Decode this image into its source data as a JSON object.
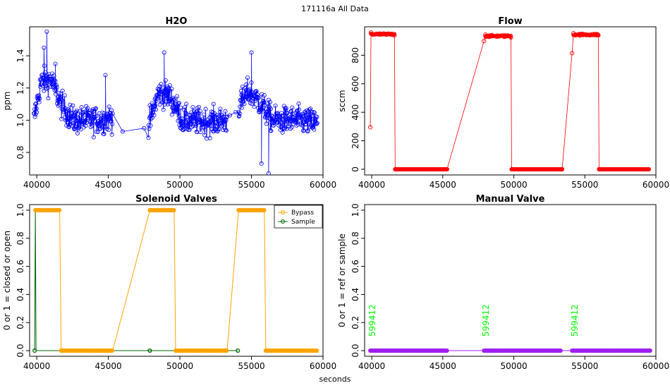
{
  "figure": {
    "title": "171116a   All Data",
    "xlabel": "seconds"
  },
  "chart_data": [
    {
      "id": "h2o",
      "type": "line",
      "title": "H2O",
      "ylabel": "ppm",
      "xlim": [
        39500,
        60000
      ],
      "ylim": [
        0.66,
        1.58
      ],
      "xticks": [
        40000,
        45000,
        50000,
        55000,
        60000
      ],
      "xtick_labels": [
        "40000",
        "45000",
        "50000",
        "55000",
        "60000"
      ],
      "yticks": [
        0.8,
        1.0,
        1.2,
        1.4
      ],
      "ytick_labels": [
        "0.8",
        "1.0",
        "1.2",
        "1.4"
      ],
      "series": [
        {
          "name": "H2O",
          "color": "#0000ff",
          "segments": [
            {
              "x_start": 39800,
              "x_end": 45300,
              "step": 25,
              "profile": [
                [
                  39800,
                  1.0
                ],
                [
                  40300,
                  1.24
                ],
                [
                  41000,
                  1.25
                ],
                [
                  41700,
                  1.1
                ],
                [
                  42500,
                  1.0
                ],
                [
                  44500,
                  1.0
                ],
                [
                  45300,
                  1.02
                ]
              ],
              "noise": 0.08
            },
            {
              "x_start": 47800,
              "x_end": 53300,
              "step": 25,
              "profile": [
                [
                  47800,
                  0.96
                ],
                [
                  48500,
                  1.17
                ],
                [
                  49300,
                  1.15
                ],
                [
                  50200,
                  1.0
                ],
                [
                  52000,
                  0.99
                ],
                [
                  53300,
                  1.0
                ]
              ],
              "noise": 0.08
            },
            {
              "x_start": 54100,
              "x_end": 59600,
              "step": 25,
              "profile": [
                [
                  54100,
                  1.08
                ],
                [
                  54800,
                  1.18
                ],
                [
                  55500,
                  1.12
                ],
                [
                  56500,
                  1.0
                ],
                [
                  58500,
                  1.0
                ],
                [
                  59600,
                  0.98
                ]
              ],
              "noise": 0.08
            }
          ],
          "outliers": [
            [
              40700,
              1.55
            ],
            [
              40500,
              1.45
            ],
            [
              48900,
              1.42
            ],
            [
              41300,
              1.35
            ],
            [
              55000,
              1.42
            ],
            [
              56200,
              0.67
            ],
            [
              55700,
              0.73
            ],
            [
              44800,
              1.28
            ],
            [
              46000,
              0.93
            ],
            [
              47500,
              0.95
            ],
            [
              53500,
              1.03
            ],
            [
              53900,
              1.05
            ]
          ]
        }
      ]
    },
    {
      "id": "flow",
      "type": "line",
      "title": "Flow",
      "ylabel": "sccm",
      "xlim": [
        39500,
        60000
      ],
      "ylim": [
        -40,
        1000
      ],
      "xticks": [
        40000,
        45000,
        50000,
        55000,
        60000
      ],
      "xtick_labels": [
        "40000",
        "45000",
        "50000",
        "55000",
        "60000"
      ],
      "yticks": [
        0,
        200,
        400,
        600,
        800
      ],
      "ytick_labels": [
        "0",
        "200",
        "400",
        "600",
        "800"
      ],
      "series": [
        {
          "name": "Flow",
          "color": "#ff0000",
          "points": [
            [
              39900,
              295
            ],
            [
              39950,
              960
            ],
            [
              40300,
              950
            ],
            [
              41000,
              945
            ],
            [
              41600,
              940
            ],
            [
              41650,
              0
            ],
            [
              45300,
              0
            ],
            [
              47900,
              900
            ],
            [
              48000,
              945
            ],
            [
              49000,
              935
            ],
            [
              49800,
              925
            ],
            [
              49850,
              0
            ],
            [
              53400,
              0
            ],
            [
              54100,
              815
            ],
            [
              54200,
              955
            ],
            [
              55000,
              945
            ],
            [
              55950,
              940
            ],
            [
              56000,
              0
            ],
            [
              59500,
              0
            ]
          ],
          "dense_runs": [
            {
              "x_start": 39950,
              "x_end": 41600,
              "y": 948,
              "jitter": 12
            },
            {
              "x_start": 41650,
              "x_end": 45300,
              "y": 0,
              "jitter": 0
            },
            {
              "x_start": 48000,
              "x_end": 49800,
              "y": 935,
              "jitter": 12
            },
            {
              "x_start": 49850,
              "x_end": 53400,
              "y": 0,
              "jitter": 0
            },
            {
              "x_start": 54200,
              "x_end": 55950,
              "y": 945,
              "jitter": 12
            },
            {
              "x_start": 56000,
              "x_end": 59500,
              "y": 0,
              "jitter": 0
            }
          ]
        }
      ]
    },
    {
      "id": "valves",
      "type": "line",
      "title": "Solenoid Valves",
      "ylabel": "0 or 1 = closed or open",
      "xlim": [
        39500,
        60000
      ],
      "ylim": [
        -0.04,
        1.04
      ],
      "xticks": [
        40000,
        45000,
        50000,
        55000,
        60000
      ],
      "xtick_labels": [
        "40000",
        "45000",
        "50000",
        "55000",
        "60000"
      ],
      "yticks": [
        0.0,
        0.2,
        0.4,
        0.6,
        0.8,
        1.0
      ],
      "ytick_labels": [
        "0.0",
        "0.2",
        "0.4",
        "0.6",
        "0.8",
        "1.0"
      ],
      "legend": {
        "position": "top-right",
        "entries": [
          "Bypass",
          "Sample"
        ]
      },
      "series": [
        {
          "name": "Bypass",
          "color": "#ffa500",
          "points": [
            [
              39900,
              1
            ],
            [
              41600,
              1
            ],
            [
              41700,
              0
            ],
            [
              45300,
              0
            ],
            [
              47900,
              1
            ],
            [
              49600,
              1
            ],
            [
              49700,
              0
            ],
            [
              53300,
              0
            ],
            [
              54100,
              1
            ],
            [
              55900,
              1
            ],
            [
              56000,
              0
            ],
            [
              59600,
              0
            ]
          ],
          "dense_runs": [
            [
              39900,
              41600,
              1
            ],
            [
              41700,
              45300,
              0
            ],
            [
              47900,
              49600,
              1
            ],
            [
              49700,
              53300,
              0
            ],
            [
              54100,
              55900,
              1
            ],
            [
              56000,
              59600,
              0
            ]
          ]
        },
        {
          "name": "Sample",
          "color": "#006400",
          "points": [
            [
              39850,
              0
            ],
            [
              39900,
              1
            ],
            [
              39950,
              0
            ],
            [
              45300,
              0
            ],
            [
              47900,
              0
            ],
            [
              54050,
              0
            ]
          ],
          "markers": [
            [
              39850,
              0
            ],
            [
              47900,
              0
            ],
            [
              54050,
              0
            ]
          ]
        }
      ]
    },
    {
      "id": "manual",
      "type": "line",
      "title": "Manual Valve",
      "ylabel": "0 or 1 = ref or sample",
      "xlim": [
        39500,
        60000
      ],
      "ylim": [
        -0.04,
        1.04
      ],
      "xticks": [
        40000,
        45000,
        50000,
        55000,
        60000
      ],
      "xtick_labels": [
        "40000",
        "45000",
        "50000",
        "55000",
        "60000"
      ],
      "yticks": [
        0.0,
        0.2,
        0.4,
        0.6,
        0.8,
        1.0
      ],
      "ytick_labels": [
        "0.0",
        "0.2",
        "0.4",
        "0.6",
        "0.8",
        "1.0"
      ],
      "series": [
        {
          "name": "Manual",
          "color": "#a020f0",
          "dense_runs": [
            [
              39900,
              45300,
              0
            ],
            [
              47900,
              53300,
              0
            ],
            [
              54100,
              59600,
              0
            ]
          ],
          "connectors": [
            [
              45300,
              47900,
              0
            ],
            [
              53300,
              54100,
              0
            ]
          ]
        }
      ],
      "annotations": [
        {
          "text": "599412",
          "x": 40000,
          "y": 0.1,
          "color": "#00ff00"
        },
        {
          "text": "599412",
          "x": 48000,
          "y": 0.1,
          "color": "#00ff00"
        },
        {
          "text": "599412",
          "x": 54250,
          "y": 0.1,
          "color": "#00ff00"
        }
      ]
    }
  ]
}
